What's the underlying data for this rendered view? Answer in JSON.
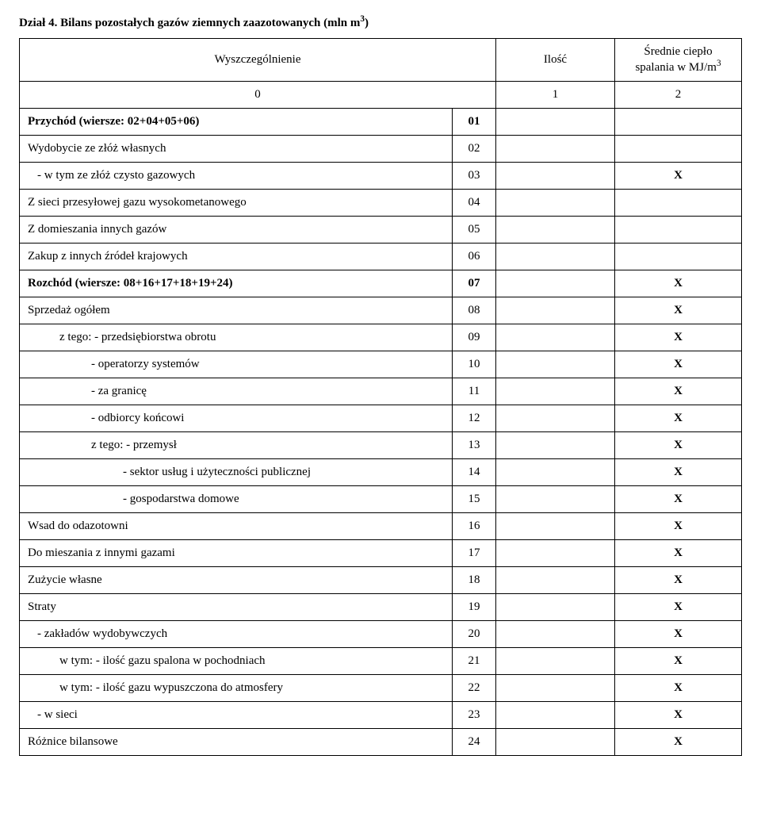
{
  "title_prefix": "Dział 4. ",
  "title_main": "Bilans pozostałych gazów ziemnych zaazotowanych (mln m",
  "title_sup": "3",
  "title_suffix": ")",
  "headers": {
    "label": "Wyszczególnienie",
    "qty": "Ilość",
    "heat_line1": "Średnie ciepło",
    "heat_line2_a": "spalania w MJ/m",
    "heat_line2_sup": "3"
  },
  "numrow": {
    "c0": "0",
    "c1": "1",
    "c2": "2"
  },
  "rows": [
    {
      "label": "Przychód (wiersze: 02+04+05+06)",
      "code": "01",
      "qty": "",
      "heat": "",
      "bold": true,
      "indent": 0
    },
    {
      "label": "Wydobycie ze złóż własnych",
      "code": "02",
      "qty": "",
      "heat": "",
      "bold": false,
      "indent": 0
    },
    {
      "label": "- w tym ze złóż czysto gazowych",
      "code": "03",
      "qty": "",
      "heat": "X",
      "bold": false,
      "indent": 1
    },
    {
      "label": "Z sieci przesyłowej gazu wysokometanowego",
      "code": "04",
      "qty": "",
      "heat": "",
      "bold": false,
      "indent": 0
    },
    {
      "label": "Z domieszania innych gazów",
      "code": "05",
      "qty": "",
      "heat": "",
      "bold": false,
      "indent": 0
    },
    {
      "label": "Zakup z innych źródeł krajowych",
      "code": "06",
      "qty": "",
      "heat": "",
      "bold": false,
      "indent": 0
    },
    {
      "label": "Rozchód (wiersze: 08+16+17+18+19+24)",
      "code": "07",
      "qty": "",
      "heat": "X",
      "bold": true,
      "indent": 0
    },
    {
      "label": "Sprzedaż ogółem",
      "code": "08",
      "qty": "",
      "heat": "X",
      "bold": false,
      "indent": 0
    },
    {
      "label": "z tego: - przedsiębiorstwa obrotu",
      "code": "09",
      "qty": "",
      "heat": "X",
      "bold": false,
      "indent": 2
    },
    {
      "label": "- operatorzy systemów",
      "code": "10",
      "qty": "",
      "heat": "X",
      "bold": false,
      "indent": 3
    },
    {
      "label": "- za granicę",
      "code": "11",
      "qty": "",
      "heat": "X",
      "bold": false,
      "indent": 3
    },
    {
      "label": "- odbiorcy końcowi",
      "code": "12",
      "qty": "",
      "heat": "X",
      "bold": false,
      "indent": 3
    },
    {
      "label": "z tego:  - przemysł",
      "code": "13",
      "qty": "",
      "heat": "X",
      "bold": false,
      "indent": 3
    },
    {
      "label": "- sektor usług i użyteczności publicznej",
      "code": "14",
      "qty": "",
      "heat": "X",
      "bold": false,
      "indent": 4
    },
    {
      "label": "- gospodarstwa domowe",
      "code": "15",
      "qty": "",
      "heat": "X",
      "bold": false,
      "indent": 4
    },
    {
      "label": "Wsad do odazotowni",
      "code": "16",
      "qty": "",
      "heat": "X",
      "bold": false,
      "indent": 0
    },
    {
      "label": "Do mieszania z innymi gazami",
      "code": "17",
      "qty": "",
      "heat": "X",
      "bold": false,
      "indent": 0
    },
    {
      "label": "Zużycie własne",
      "code": "18",
      "qty": "",
      "heat": "X",
      "bold": false,
      "indent": 0
    },
    {
      "label": "Straty",
      "code": "19",
      "qty": "",
      "heat": "X",
      "bold": false,
      "indent": 0
    },
    {
      "label": "- zakładów wydobywczych",
      "code": "20",
      "qty": "",
      "heat": "X",
      "bold": false,
      "indent": 1
    },
    {
      "label": "w tym: - ilość gazu spalona w pochodniach",
      "code": "21",
      "qty": "",
      "heat": "X",
      "bold": false,
      "indent": 2
    },
    {
      "label": "w tym: - ilość gazu wypuszczona do atmosfery",
      "code": "22",
      "qty": "",
      "heat": "X",
      "bold": false,
      "indent": 2
    },
    {
      "label": "- w sieci",
      "code": "23",
      "qty": "",
      "heat": "X",
      "bold": false,
      "indent": 1
    },
    {
      "label": "Różnice bilansowe",
      "code": "24",
      "qty": "",
      "heat": "X",
      "bold": false,
      "indent": 0
    }
  ]
}
